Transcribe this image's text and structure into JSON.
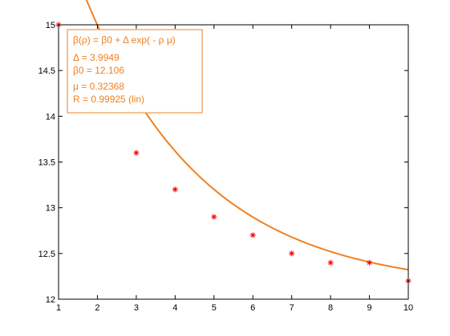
{
  "chart_data": {
    "type": "scatter",
    "title": "",
    "xlabel": "",
    "ylabel": "",
    "xlim": [
      1,
      10
    ],
    "ylim": [
      12,
      15
    ],
    "xticks": [
      1,
      2,
      3,
      4,
      5,
      6,
      7,
      8,
      9,
      10
    ],
    "yticks": [
      12,
      12.5,
      13,
      13.5,
      14,
      14.5,
      15
    ],
    "x_tick_labels": [
      "1",
      "2",
      "3",
      "4",
      "5",
      "6",
      "7",
      "8",
      "9",
      "10"
    ],
    "y_tick_labels": [
      "12",
      "12.5",
      "13",
      "13.5",
      "14",
      "14.5",
      "15"
    ],
    "grid": false,
    "series": [
      {
        "kind": "points",
        "marker": "*",
        "color": "#ff0000",
        "x": [
          1,
          2,
          3,
          4,
          5,
          6,
          7,
          8,
          9,
          10
        ],
        "y": [
          15.0,
          14.3,
          13.6,
          13.2,
          12.9,
          12.7,
          12.5,
          12.4,
          12.4,
          12.2
        ]
      },
      {
        "kind": "fit-curve",
        "color": "#f08020",
        "model": "exponential",
        "params": {
          "delta": 3.9949,
          "beta0": 12.106,
          "mu": 0.32368,
          "x0": 1
        }
      }
    ],
    "annotation": {
      "position": "top-left",
      "color": "#f08020",
      "lines": [
        "β(ρ) = β0 + Δ exp( - ρ μ)",
        "Δ = 3.9949",
        "β0 = 12.106",
        "μ = 0.32368",
        "R = 0.99925  (lin)"
      ]
    }
  }
}
